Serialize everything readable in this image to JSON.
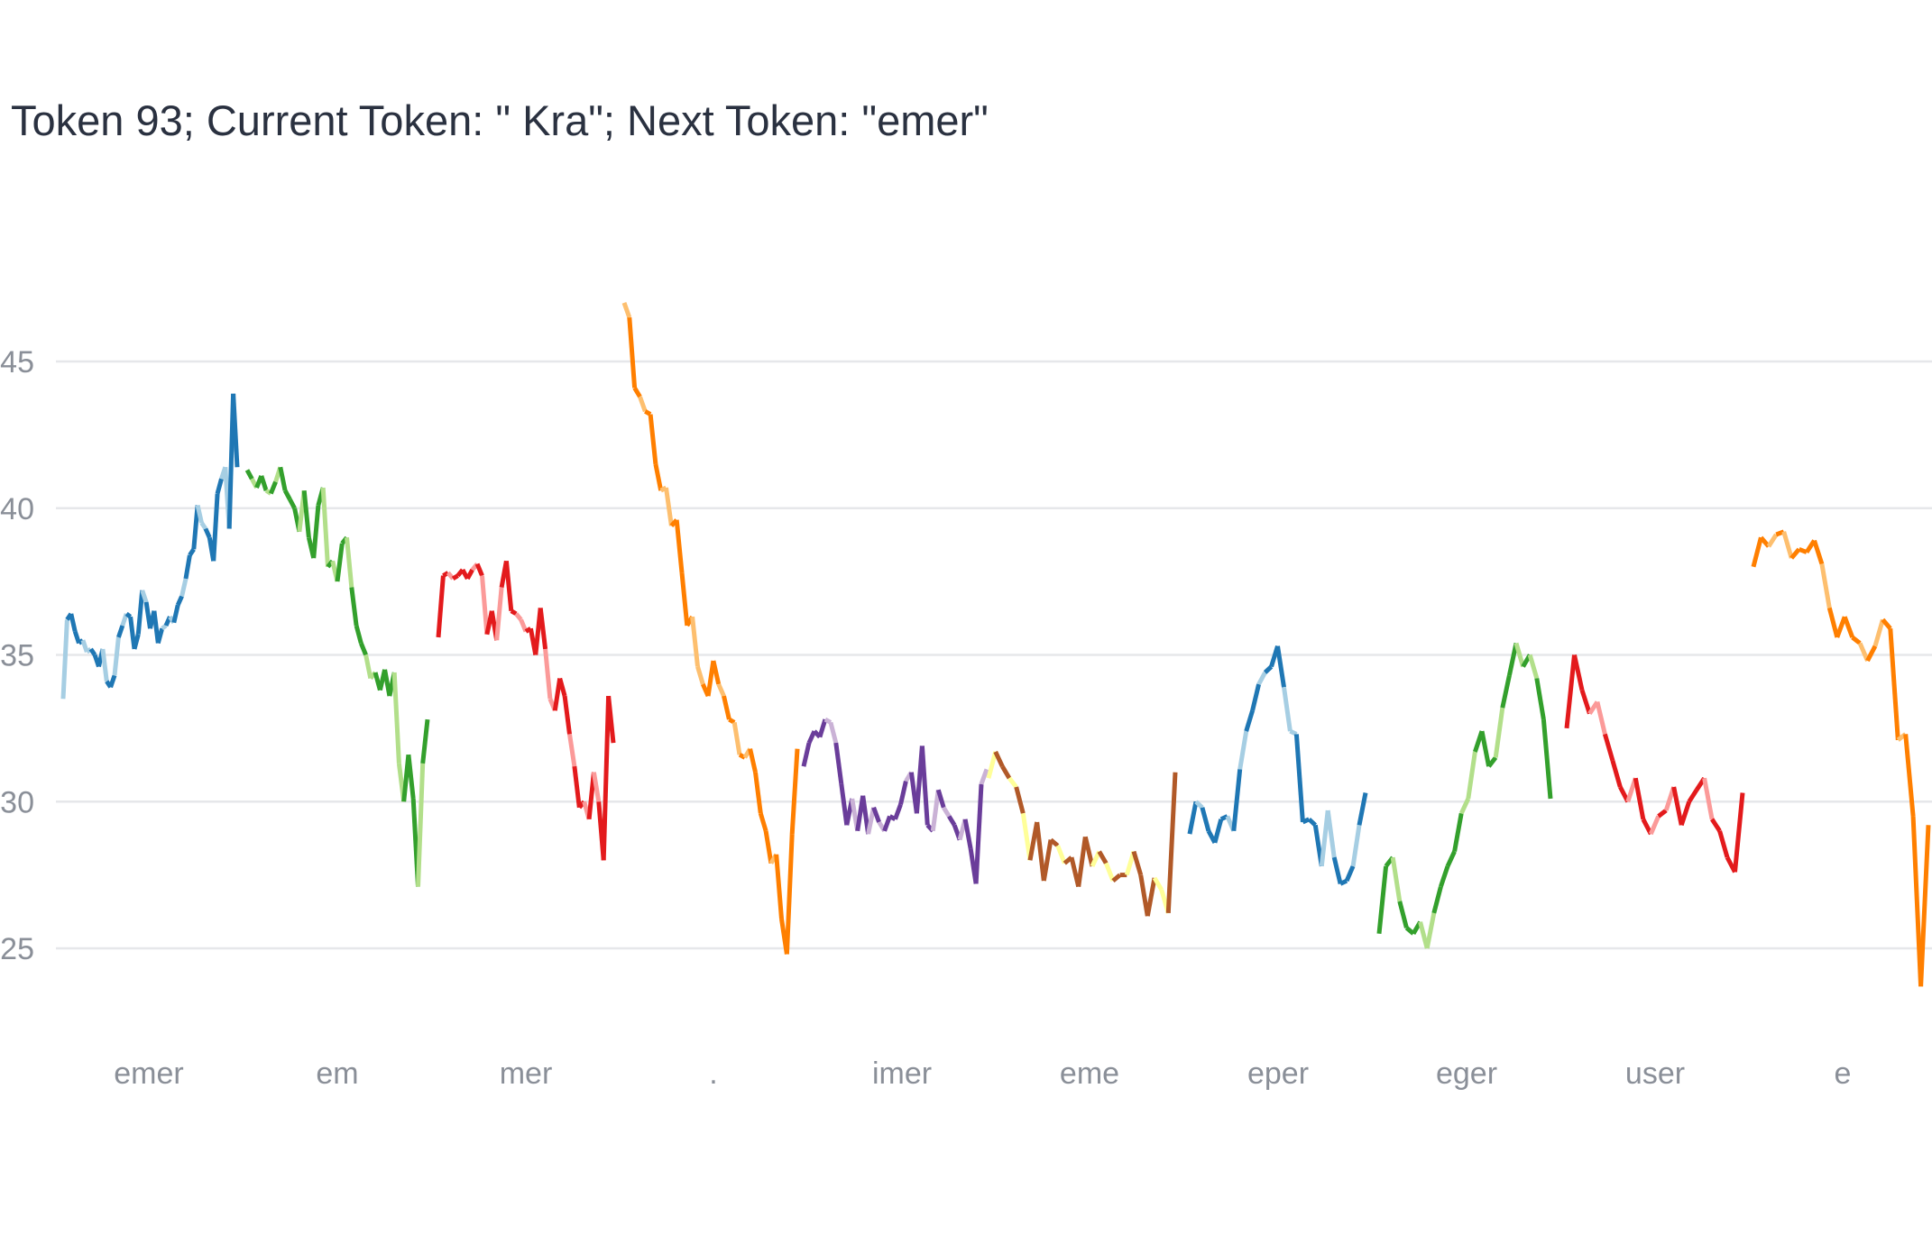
{
  "title": "Token 93; Current Token: \" Kra\"; Next Token: \"emer\"",
  "chart_data": {
    "type": "line",
    "title": "Token 93; Current Token: \" Kra\"; Next Token: \"emer\"",
    "xlabel": "",
    "ylabel": "",
    "ylim": [
      21.8,
      50
    ],
    "yticks": [
      25,
      30,
      35,
      40,
      45
    ],
    "grid": true,
    "legend": "none",
    "x_categories": [
      "emer",
      "em",
      "mer",
      ".",
      "imer",
      "eme",
      "eper",
      "eger",
      "user",
      "e"
    ],
    "palette": [
      "#1f77b4",
      "#a6cee3",
      "#33a02c",
      "#b2df8a",
      "#e31a1c",
      "#fb9a99",
      "#ff7f00",
      "#fdbf6f",
      "#6a3d9a",
      "#cab2d6",
      "#b15928",
      "#ffff99"
    ],
    "segments": [
      {
        "category": "emer",
        "palette": [
          0,
          1
        ],
        "values": [
          33.5,
          36.2,
          36.4,
          35.8,
          35.4,
          35.5,
          35.1,
          35.2,
          35.0,
          34.6,
          35.2,
          34.1,
          33.9,
          34.3,
          35.6,
          36.0,
          36.4,
          36.3,
          35.2,
          35.7,
          37.2,
          36.8,
          35.9,
          36.5,
          35.4,
          35.9,
          36.0,
          36.3,
          36.1,
          36.7,
          37.0,
          37.6,
          38.4,
          38.6,
          40.1,
          39.5,
          39.3,
          39.0,
          38.2,
          40.5,
          41.0,
          41.4,
          39.3,
          43.9,
          41.4
        ]
      },
      {
        "category": "em",
        "palette": [
          2,
          3
        ],
        "values": [
          41.3,
          41.0,
          40.7,
          41.1,
          40.6,
          40.5,
          40.9,
          41.4,
          40.6,
          40.3,
          40.0,
          39.2,
          40.6,
          39.0,
          38.3,
          40.1,
          40.7,
          38.0,
          38.2,
          37.5,
          38.8,
          39.0,
          37.3,
          36.0,
          35.4,
          35.0,
          34.2,
          34.4,
          33.8,
          34.5,
          33.6,
          34.4,
          31.3,
          30.0,
          31.6,
          30.1,
          27.1,
          31.3,
          32.8
        ]
      },
      {
        "category": "mer",
        "palette": [
          4,
          5
        ],
        "values": [
          35.6,
          37.7,
          37.8,
          37.6,
          37.7,
          37.9,
          37.6,
          37.9,
          38.1,
          37.7,
          35.7,
          36.5,
          35.5,
          37.3,
          38.2,
          36.5,
          36.4,
          36.2,
          35.8,
          35.9,
          35.0,
          36.6,
          35.2,
          33.5,
          33.1,
          34.2,
          33.6,
          32.3,
          31.2,
          29.8,
          30.0,
          29.4,
          31.0,
          30.0,
          28.0,
          33.6,
          32.0
        ]
      },
      {
        "category": ".",
        "palette": [
          6,
          7
        ],
        "values": [
          47.0,
          46.5,
          44.1,
          43.8,
          43.3,
          43.2,
          41.5,
          40.6,
          40.7,
          39.4,
          39.6,
          37.8,
          36.0,
          36.3,
          34.6,
          34.0,
          33.6,
          34.8,
          34.0,
          33.6,
          32.8,
          32.7,
          31.6,
          31.5,
          31.8,
          31.0,
          29.6,
          29.0,
          27.9,
          28.2,
          26.0,
          24.8,
          28.9,
          31.8
        ]
      },
      {
        "category": "imer",
        "palette": [
          8,
          9
        ],
        "values": [
          31.2,
          32.0,
          32.4,
          32.2,
          32.8,
          32.7,
          32.0,
          30.6,
          29.2,
          30.1,
          29.0,
          30.2,
          28.9,
          29.8,
          29.3,
          29.0,
          29.5,
          29.4,
          29.9,
          30.7,
          31.0,
          29.6,
          31.9,
          29.2,
          29.0,
          30.4,
          29.8,
          29.5,
          29.2,
          28.7,
          29.4,
          28.4,
          27.2,
          30.6,
          31.1
        ]
      },
      {
        "category": "eme",
        "palette": [
          10,
          11
        ],
        "values": [
          30.8,
          31.7,
          31.2,
          30.8,
          30.5,
          29.6,
          28.0,
          29.3,
          27.3,
          28.7,
          28.5,
          27.9,
          28.1,
          27.1,
          28.8,
          27.8,
          28.3,
          27.9,
          27.3,
          27.5,
          27.5,
          28.3,
          27.5,
          26.1,
          27.4,
          27.0,
          26.2,
          31.0
        ]
      },
      {
        "category": "eper",
        "palette": [
          0,
          1
        ],
        "values": [
          28.9,
          30.0,
          29.8,
          29.0,
          28.6,
          29.4,
          29.5,
          29.0,
          31.1,
          32.4,
          33.1,
          34.0,
          34.4,
          34.6,
          35.3,
          33.9,
          32.4,
          32.3,
          29.3,
          29.4,
          29.2,
          27.8,
          29.7,
          28.1,
          27.2,
          27.3,
          27.8,
          29.2,
          30.3
        ]
      },
      {
        "category": "eger",
        "palette": [
          2,
          3
        ],
        "values": [
          25.5,
          27.8,
          28.1,
          26.6,
          25.7,
          25.5,
          25.9,
          25.0,
          26.2,
          27.1,
          27.8,
          28.3,
          29.6,
          30.1,
          31.7,
          32.4,
          31.2,
          31.5,
          33.2,
          34.3,
          35.4,
          34.6,
          35.0,
          34.2,
          32.8,
          30.1
        ]
      },
      {
        "category": "user",
        "palette": [
          4,
          5
        ],
        "values": [
          32.5,
          35.0,
          33.8,
          33.0,
          33.4,
          32.3,
          31.4,
          30.5,
          30.0,
          30.8,
          29.4,
          28.9,
          29.5,
          29.7,
          30.5,
          29.2,
          30.0,
          30.4,
          30.8,
          29.4,
          29.0,
          28.1,
          27.6,
          30.3
        ]
      },
      {
        "category": "e",
        "palette": [
          6,
          7
        ],
        "values": [
          38.0,
          39.0,
          38.7,
          39.1,
          39.2,
          38.3,
          38.6,
          38.5,
          38.9,
          38.1,
          36.6,
          35.6,
          36.3,
          35.6,
          35.4,
          34.8,
          35.3,
          36.2,
          35.9,
          32.1,
          32.3,
          29.5,
          23.7,
          29.2
        ]
      }
    ]
  }
}
